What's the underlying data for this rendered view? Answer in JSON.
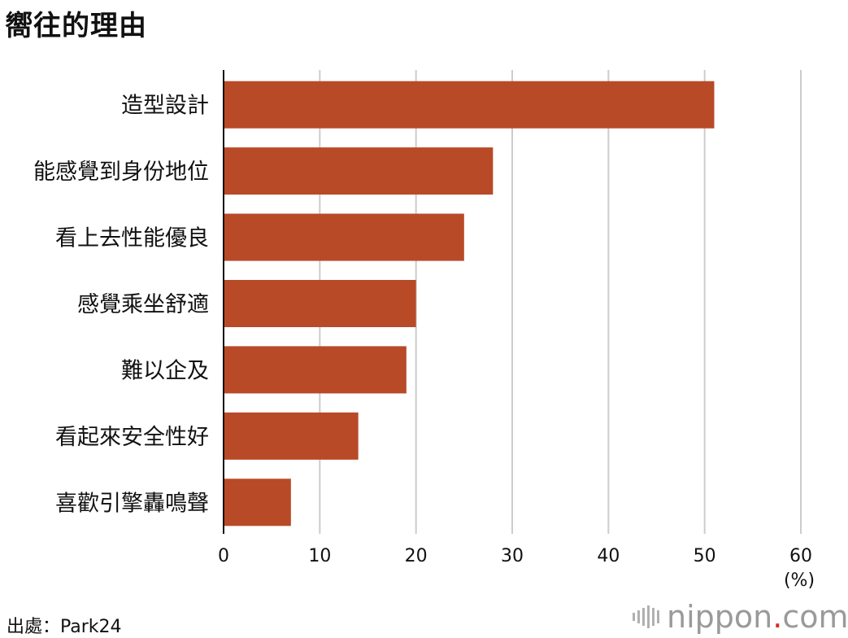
{
  "chart_title": "嚮往的理由",
  "source": "出處：Park24",
  "brand": {
    "name": "nippon",
    "dot": ".",
    "tld": "com"
  },
  "colors": {
    "bar": "#b84a28",
    "grid": "#cccccc",
    "axis": "#111111"
  },
  "chart_data": {
    "type": "bar",
    "orientation": "horizontal",
    "title": "嚮往的理由",
    "categories": [
      "造型設計",
      "能感覺到身份地位",
      "看上去性能優良",
      "感覺乘坐舒適",
      "難以企及",
      "看起來安全性好",
      "喜歡引擎轟鳴聲"
    ],
    "values": [
      51,
      28,
      25,
      20,
      19,
      14,
      7
    ],
    "xlim": [
      0,
      60
    ],
    "xticks": [
      0,
      10,
      20,
      30,
      40,
      50,
      60
    ],
    "xunit": "(%)",
    "grid": true
  }
}
